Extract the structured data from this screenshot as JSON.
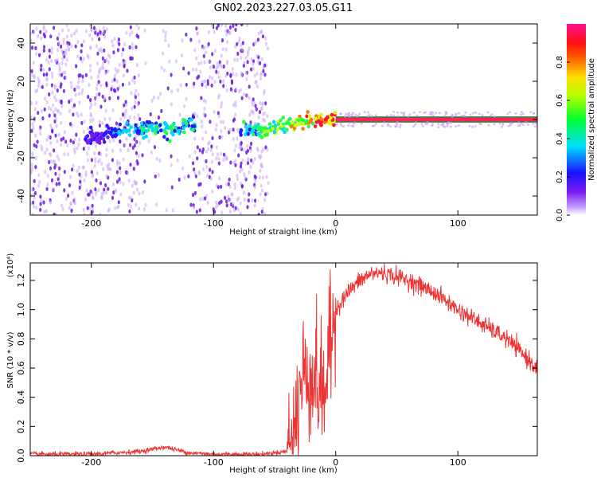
{
  "title": "GN02.2023.227.03.05.G11",
  "colors": {
    "snr_line": "#ee3333",
    "spectrogram_low": "#b070f0",
    "spectrogram_ridge": "#e8204a"
  },
  "chart_data": [
    {
      "id": "spectrogram",
      "type": "heatmap",
      "title": "",
      "xlabel": "Height of straight line (km)",
      "ylabel": "Frequency (Hz)",
      "xlim": [
        -250,
        165
      ],
      "ylim": [
        -50,
        50
      ],
      "xticks": [
        -200,
        -100,
        0,
        100
      ],
      "yticks": [
        -40,
        -20,
        0,
        20,
        40
      ],
      "grid": false,
      "colorbar": {
        "label": "Normalized spectral amplitude",
        "range": [
          0,
          1
        ],
        "ticks": [
          "0.0",
          "0.2",
          "0.4",
          "0.6",
          "0.8"
        ],
        "colormap": "rainbow (violet→blue→cyan→green→yellow→red→magenta)"
      },
      "features": [
        {
          "name": "scattered noise",
          "x_range": [
            -250,
            -55
          ],
          "freq_range": [
            -50,
            50
          ],
          "amplitude": 0.05
        },
        {
          "name": "noise gap",
          "x_range": [
            -120,
            -115
          ],
          "freq_range": [
            -50,
            50
          ],
          "amplitude": 0.0
        },
        {
          "name": "signal trace",
          "x": [
            -200,
            -180,
            -160,
            -140,
            -120,
            -80,
            -60,
            -40,
            -20,
            0
          ],
          "freq": [
            -10,
            -6,
            -5,
            -5,
            -3,
            -5,
            -6,
            -3,
            -1,
            0
          ],
          "amplitude": [
            0.25,
            0.3,
            0.4,
            0.45,
            0.4,
            0.4,
            0.5,
            0.6,
            0.8,
            0.95
          ]
        },
        {
          "name": "steady tone",
          "x_range": [
            0,
            165
          ],
          "freq": 0,
          "amplitude": 0.95
        }
      ]
    },
    {
      "id": "snr",
      "type": "line",
      "title": "",
      "xlabel": "Height of straight line (km)",
      "ylabel": "SNR (10 * v/v)",
      "y_multiplier": "(x10⁴)",
      "xlim": [
        -250,
        165
      ],
      "ylim": [
        0,
        1.32
      ],
      "xticks": [
        -200,
        -100,
        0,
        100
      ],
      "yticks": [
        "0.0",
        "0.2",
        "0.4",
        "0.6",
        "0.8",
        "1.0",
        "1.2"
      ],
      "grid": false,
      "x": [
        -250,
        -200,
        -160,
        -140,
        -120,
        -100,
        -80,
        -60,
        -40,
        -35,
        -30,
        -25,
        -20,
        -15,
        -10,
        -5,
        0,
        10,
        20,
        30,
        40,
        60,
        80,
        100,
        120,
        140,
        165
      ],
      "values": [
        0.01,
        0.01,
        0.03,
        0.06,
        0.02,
        0.01,
        0.01,
        0.01,
        0.03,
        0.1,
        0.4,
        0.6,
        0.55,
        0.5,
        0.4,
        0.7,
        1.0,
        1.12,
        1.2,
        1.25,
        1.25,
        1.2,
        1.12,
        1.0,
        0.9,
        0.8,
        0.6
      ]
    }
  ]
}
